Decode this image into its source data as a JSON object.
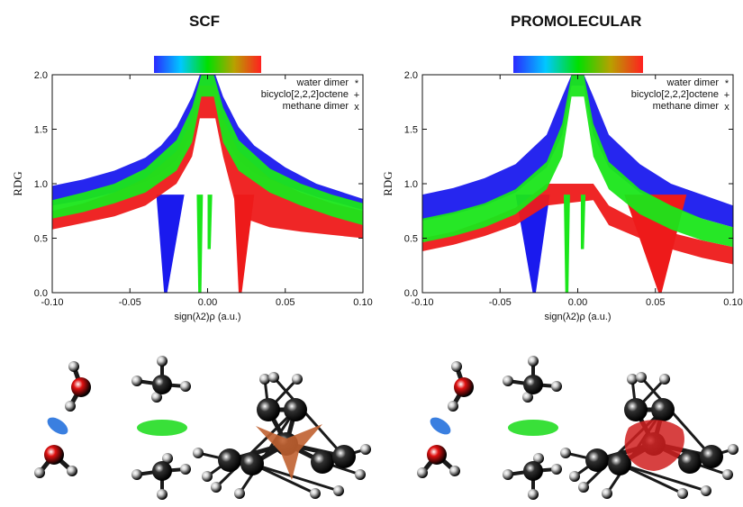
{
  "panels": [
    {
      "title": "SCF"
    },
    {
      "title": "PROMOLECULAR"
    }
  ],
  "colors": {
    "water": "#1a1aee",
    "bicyclo": "#ee1a1a",
    "methane": "#1ae61a"
  },
  "colorbar": [
    "#2a2aff",
    "#00c8ff",
    "#00e000",
    "#b8a000",
    "#ff2020"
  ],
  "chart_data": [
    {
      "type": "scatter",
      "title": "SCF",
      "xlabel": "sign(λ2)ρ (a.u.)",
      "ylabel": "RDG",
      "xlim": [
        -0.1,
        0.1
      ],
      "ylim": [
        0.0,
        2.0
      ],
      "xticks": [
        "-0.10",
        "-0.05",
        "0.00",
        "0.05",
        "0.10"
      ],
      "yticks": [
        "0.0",
        "0.5",
        "1.0",
        "1.5",
        "2.0"
      ],
      "legend_position": "top-right",
      "series": [
        {
          "name": "water dimer",
          "color": "#1a1aee",
          "marker": "*",
          "band": {
            "x": [
              -0.1,
              -0.08,
              -0.06,
              -0.04,
              -0.03,
              -0.02,
              -0.01,
              -0.005,
              0.005,
              0.01,
              0.02,
              0.03,
              0.05,
              0.07,
              0.1
            ],
            "low": [
              0.8,
              0.85,
              0.92,
              1.02,
              1.1,
              1.22,
              1.45,
              1.8,
              1.8,
              1.45,
              1.22,
              1.1,
              0.98,
              0.88,
              0.76
            ],
            "high": [
              0.98,
              1.04,
              1.12,
              1.24,
              1.35,
              1.52,
              1.8,
              2.0,
              2.0,
              1.8,
              1.52,
              1.35,
              1.15,
              1.0,
              0.86
            ]
          },
          "spikes": [
            {
              "x": -0.027,
              "xmin": -0.033,
              "xmax": -0.015,
              "ymin": 0.0
            }
          ]
        },
        {
          "name": "bicyclo[2,2,2]octene",
          "color": "#ee1a1a",
          "marker": "+",
          "band": {
            "x": [
              -0.1,
              -0.08,
              -0.06,
              -0.04,
              -0.02,
              -0.01,
              -0.005,
              0.005,
              0.01,
              0.02,
              0.04,
              0.06,
              0.08,
              0.1
            ],
            "low": [
              0.58,
              0.64,
              0.7,
              0.8,
              1.0,
              1.25,
              1.6,
              1.6,
              1.25,
              0.7,
              0.6,
              0.56,
              0.53,
              0.5
            ],
            "high": [
              0.75,
              0.82,
              0.92,
              1.05,
              1.3,
              1.6,
              1.9,
              1.9,
              1.6,
              1.3,
              1.05,
              0.92,
              0.82,
              0.75
            ]
          },
          "spikes": [
            {
              "x": 0.021,
              "xmin": 0.017,
              "xmax": 0.03,
              "ymin": 0.0
            }
          ]
        },
        {
          "name": "methane dimer",
          "color": "#1ae61a",
          "marker": "x",
          "band": {
            "x": [
              -0.1,
              -0.08,
              -0.06,
              -0.04,
              -0.02,
              -0.01,
              -0.004,
              0.004,
              0.01,
              0.02,
              0.04,
              0.06,
              0.08,
              0.1
            ],
            "low": [
              0.68,
              0.74,
              0.82,
              0.92,
              1.12,
              1.38,
              1.8,
              1.8,
              1.38,
              1.12,
              0.92,
              0.8,
              0.7,
              0.62
            ],
            "high": [
              0.85,
              0.92,
              1.0,
              1.14,
              1.4,
              1.7,
              2.0,
              2.0,
              1.7,
              1.4,
              1.14,
              1.0,
              0.9,
              0.82
            ]
          },
          "spikes": [
            {
              "x": -0.005,
              "xmin": -0.007,
              "xmax": -0.003,
              "ymin": 0.0
            },
            {
              "x": 0.001,
              "xmin": 0.0,
              "xmax": 0.003,
              "ymin": 0.4
            }
          ]
        }
      ]
    },
    {
      "type": "scatter",
      "title": "PROMOLECULAR",
      "xlabel": "sign(λ2)ρ (a.u.)",
      "ylabel": "RDG",
      "xlim": [
        -0.1,
        0.1
      ],
      "ylim": [
        0.0,
        2.0
      ],
      "xticks": [
        "-0.10",
        "-0.05",
        "0.00",
        "0.05",
        "0.10"
      ],
      "yticks": [
        "0.0",
        "0.5",
        "1.0",
        "1.5",
        "2.0"
      ],
      "legend_position": "top-right",
      "series": [
        {
          "name": "water dimer",
          "color": "#1a1aee",
          "marker": "*",
          "band": {
            "x": [
              -0.1,
              -0.08,
              -0.06,
              -0.04,
              -0.02,
              -0.01,
              -0.004,
              0.004,
              0.01,
              0.02,
              0.04,
              0.06,
              0.08,
              0.1
            ],
            "low": [
              0.66,
              0.72,
              0.8,
              0.92,
              1.15,
              1.45,
              1.9,
              1.9,
              1.45,
              1.15,
              0.92,
              0.78,
              0.68,
              0.6
            ],
            "high": [
              0.9,
              0.96,
              1.05,
              1.18,
              1.45,
              1.8,
              2.0,
              2.0,
              1.8,
              1.45,
              1.18,
              1.0,
              0.9,
              0.8
            ]
          },
          "spikes": [
            {
              "x": -0.028,
              "xmin": -0.04,
              "xmax": -0.018,
              "ymin": 0.0
            }
          ]
        },
        {
          "name": "bicyclo[2,2,2]octene",
          "color": "#ee1a1a",
          "marker": "+",
          "band": {
            "x": [
              -0.1,
              -0.08,
              -0.06,
              -0.04,
              -0.02,
              0.01,
              0.02,
              0.04,
              0.06,
              0.08,
              0.1
            ],
            "low": [
              0.38,
              0.44,
              0.52,
              0.62,
              0.8,
              0.85,
              0.62,
              0.5,
              0.4,
              0.32,
              0.26
            ],
            "high": [
              0.5,
              0.56,
              0.66,
              0.78,
              1.0,
              1.0,
              0.8,
              0.65,
              0.55,
              0.48,
              0.42
            ]
          },
          "spikes": [
            {
              "x": 0.053,
              "xmin": 0.03,
              "xmax": 0.07,
              "ymin": 0.0
            }
          ]
        },
        {
          "name": "methane dimer",
          "color": "#1ae61a",
          "marker": "x",
          "band": {
            "x": [
              -0.1,
              -0.08,
              -0.06,
              -0.04,
              -0.02,
              -0.01,
              -0.004,
              0.004,
              0.01,
              0.02,
              0.04,
              0.06,
              0.08,
              0.1
            ],
            "low": [
              0.46,
              0.52,
              0.6,
              0.72,
              0.95,
              1.25,
              1.8,
              1.8,
              1.25,
              0.95,
              0.72,
              0.58,
              0.48,
              0.42
            ],
            "high": [
              0.68,
              0.74,
              0.82,
              0.95,
              1.2,
              1.55,
              2.0,
              2.0,
              1.55,
              1.2,
              0.95,
              0.8,
              0.68,
              0.6
            ]
          },
          "spikes": [
            {
              "x": -0.007,
              "xmin": -0.009,
              "xmax": -0.005,
              "ymin": 0.0
            },
            {
              "x": 0.003,
              "xmin": 0.002,
              "xmax": 0.005,
              "ymin": 0.4
            }
          ]
        }
      ]
    }
  ],
  "molecules": [
    {
      "name": "water-dimer",
      "isosurface": "#3a7fe0"
    },
    {
      "name": "methane-dimer",
      "isosurface": "#39e039"
    },
    {
      "name": "bicyclooctene",
      "isosurface": "#c06030"
    }
  ]
}
